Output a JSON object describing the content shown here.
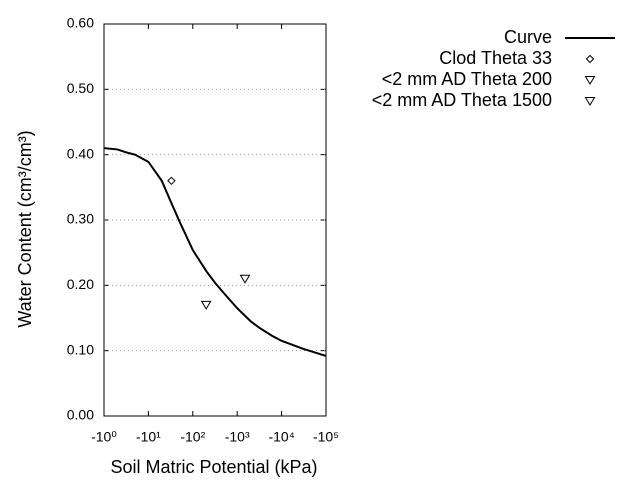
{
  "chart_data": {
    "type": "line",
    "xlabel": "Soil Matric Potential (kPa)",
    "ylabel": "Water Content (cm³/cm³)",
    "xscale": "log",
    "xlim": [
      -1,
      -100000
    ],
    "xticks": [
      {
        "value": -1,
        "label": "-10⁰"
      },
      {
        "value": -10,
        "label": "-10¹"
      },
      {
        "value": -100,
        "label": "-10²"
      },
      {
        "value": -1000,
        "label": "-10³"
      },
      {
        "value": -10000,
        "label": "-10⁴"
      },
      {
        "value": -100000,
        "label": "-10⁵"
      }
    ],
    "ylim": [
      0,
      0.6
    ],
    "yticks": [
      {
        "value": 0,
        "label": "0.00"
      },
      {
        "value": 0.1,
        "label": "0.10"
      },
      {
        "value": 0.2,
        "label": "0.20"
      },
      {
        "value": 0.3,
        "label": "0.30"
      },
      {
        "value": 0.4,
        "label": "0.40"
      },
      {
        "value": 0.5,
        "label": "0.50"
      },
      {
        "value": 0.6,
        "label": "0.60"
      }
    ],
    "grid": true,
    "legend": "right",
    "series": [
      {
        "name": "Curve",
        "color": "#000000",
        "marker": "line",
        "x": [
          -1,
          -2,
          -3,
          -5,
          -10,
          -20,
          -31,
          -50,
          -100,
          -200,
          -316,
          -600,
          -1000,
          -2000,
          -3160,
          -6000,
          -10000,
          -30000,
          -100000
        ],
        "values": [
          0.41,
          0.408,
          0.404,
          0.4,
          0.389,
          0.36,
          0.33,
          0.298,
          0.254,
          0.222,
          0.204,
          0.182,
          0.165,
          0.145,
          0.135,
          0.123,
          0.115,
          0.103,
          0.092
        ]
      },
      {
        "name": "Clod Theta 33",
        "color": "#000000",
        "marker": "diamond",
        "x": [
          -33
        ],
        "values": [
          0.36
        ]
      },
      {
        "name": "<2 mm AD Theta 200",
        "color": "#000000",
        "marker": "triangle-down",
        "x": [
          -200
        ],
        "values": [
          0.17
        ]
      },
      {
        "name": "<2 mm AD Theta 1500",
        "color": "#000000",
        "marker": "triangle-down",
        "x": [
          -1500
        ],
        "values": [
          0.21
        ]
      }
    ]
  }
}
